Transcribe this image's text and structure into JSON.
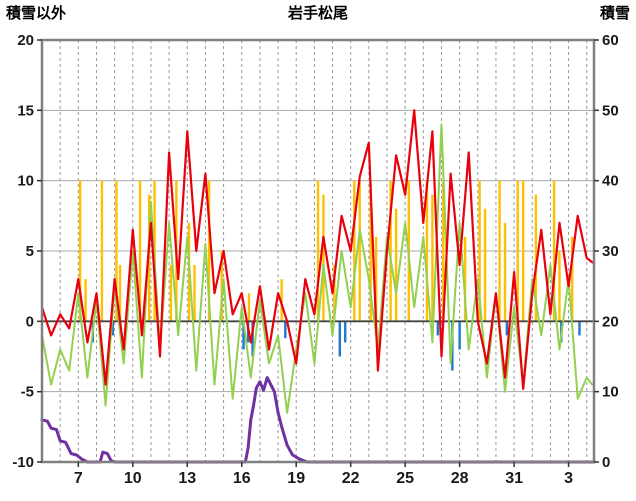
{
  "chart_data": {
    "type": "line",
    "title": "岩手松尾",
    "left_axis": {
      "label": "積雪以外",
      "min": -10,
      "max": 20,
      "tick_step": 5,
      "tick_values": [
        20,
        15,
        10,
        5,
        0,
        -5,
        -10
      ],
      "tick_labels": [
        "20",
        "15",
        "10",
        "5",
        "0",
        "-5",
        "-10"
      ]
    },
    "right_axis": {
      "label": "積雪",
      "min": 0,
      "max": 60,
      "tick_step": 10,
      "tick_values": [
        60,
        50,
        40,
        30,
        20,
        10,
        0
      ],
      "tick_labels": [
        "60",
        "50",
        "40",
        "30",
        "20",
        "10",
        "0"
      ]
    },
    "x_axis": {
      "min": 5,
      "max": 35.4,
      "day_grid_step": 1,
      "tick_positions": [
        7,
        10,
        13,
        16,
        19,
        22,
        25,
        28,
        31,
        34
      ],
      "tick_labels": [
        "7",
        "10",
        "13",
        "16",
        "19",
        "22",
        "25",
        "28",
        "31",
        "3"
      ]
    },
    "grid": {
      "h_line_color": "#aaaaaa",
      "v_line_color": "#999999",
      "zero_line_color": "#444444",
      "frame_color": "#808080"
    },
    "series": [
      {
        "name": "sunshine-bars",
        "type": "bar",
        "axis": "left",
        "color": "#ffc000",
        "bar_width": 2.4,
        "points": [
          [
            7.1,
            10
          ],
          [
            7.4,
            3
          ],
          [
            8.3,
            10
          ],
          [
            9.1,
            10
          ],
          [
            9.3,
            4
          ],
          [
            10.4,
            10
          ],
          [
            10.9,
            9
          ],
          [
            11.2,
            10
          ],
          [
            12.1,
            4
          ],
          [
            12.4,
            10
          ],
          [
            13.1,
            7
          ],
          [
            13.4,
            4
          ],
          [
            14.2,
            10
          ],
          [
            14.9,
            5
          ],
          [
            16.4,
            2
          ],
          [
            18.2,
            3
          ],
          [
            20.2,
            10
          ],
          [
            20.5,
            9
          ],
          [
            21.1,
            4
          ],
          [
            22.2,
            10
          ],
          [
            22.5,
            10
          ],
          [
            23.1,
            10
          ],
          [
            23.4,
            6
          ],
          [
            24.2,
            10
          ],
          [
            24.5,
            8
          ],
          [
            25.2,
            10
          ],
          [
            26.2,
            10
          ],
          [
            26.5,
            9
          ],
          [
            27.1,
            10
          ],
          [
            28.3,
            6
          ],
          [
            29.1,
            10
          ],
          [
            29.4,
            8
          ],
          [
            30.2,
            10
          ],
          [
            30.5,
            7
          ],
          [
            31.2,
            10
          ],
          [
            31.5,
            10
          ],
          [
            32.2,
            9
          ],
          [
            33.2,
            10
          ],
          [
            33.5,
            5
          ],
          [
            34.2,
            6
          ]
        ]
      },
      {
        "name": "precipitation-bars",
        "type": "bar",
        "axis": "left",
        "color": "#1f77d0",
        "bar_width": 2.4,
        "points": [
          [
            7.8,
            -1.5
          ],
          [
            8.9,
            -1
          ],
          [
            16.1,
            -2
          ],
          [
            16.35,
            -1.5
          ],
          [
            16.6,
            -2.5
          ],
          [
            17.3,
            -1
          ],
          [
            18.4,
            -1.2
          ],
          [
            21.4,
            -2.5
          ],
          [
            21.7,
            -1.5
          ],
          [
            26.8,
            -1
          ],
          [
            27.6,
            -3.5
          ],
          [
            28.0,
            -2
          ],
          [
            30.6,
            -1
          ],
          [
            33.6,
            -1.5
          ],
          [
            34.6,
            -1
          ]
        ]
      },
      {
        "name": "green-line",
        "type": "line",
        "axis": "left",
        "color": "#92d050",
        "width": 2,
        "points": [
          [
            5.0,
            -1
          ],
          [
            5.5,
            -4.5
          ],
          [
            6.0,
            -2
          ],
          [
            6.5,
            -3.5
          ],
          [
            7.0,
            2
          ],
          [
            7.5,
            -4
          ],
          [
            8.0,
            1.5
          ],
          [
            8.5,
            -6
          ],
          [
            9.0,
            2.5
          ],
          [
            9.5,
            -3
          ],
          [
            10.0,
            5
          ],
          [
            10.5,
            -4
          ],
          [
            11.0,
            8.5
          ],
          [
            11.5,
            -2
          ],
          [
            12.0,
            7
          ],
          [
            12.5,
            -1
          ],
          [
            13.0,
            6
          ],
          [
            13.5,
            -3.5
          ],
          [
            14.0,
            5.5
          ],
          [
            14.5,
            -4.5
          ],
          [
            15.0,
            3
          ],
          [
            15.5,
            -5.5
          ],
          [
            16.0,
            1
          ],
          [
            16.5,
            -4
          ],
          [
            17.0,
            1.5
          ],
          [
            17.5,
            -3
          ],
          [
            18.0,
            -1
          ],
          [
            18.5,
            -6.5
          ],
          [
            19.0,
            -2
          ],
          [
            19.5,
            2
          ],
          [
            20.0,
            -3
          ],
          [
            20.5,
            4
          ],
          [
            21.0,
            -1
          ],
          [
            21.5,
            5
          ],
          [
            22.0,
            1
          ],
          [
            22.5,
            6.5
          ],
          [
            23.0,
            3
          ],
          [
            23.5,
            -2
          ],
          [
            24.0,
            6
          ],
          [
            24.5,
            2
          ],
          [
            25.0,
            7
          ],
          [
            25.5,
            1
          ],
          [
            26.0,
            6
          ],
          [
            26.5,
            -1.5
          ],
          [
            27.0,
            14
          ],
          [
            27.5,
            -3
          ],
          [
            28.0,
            7
          ],
          [
            28.5,
            -2
          ],
          [
            29.0,
            3
          ],
          [
            29.5,
            -4
          ],
          [
            30.0,
            2
          ],
          [
            30.5,
            -5
          ],
          [
            31.0,
            1
          ],
          [
            31.5,
            -4.5
          ],
          [
            32.0,
            3
          ],
          [
            32.5,
            -1
          ],
          [
            33.0,
            4
          ],
          [
            33.5,
            -2
          ],
          [
            34.0,
            3
          ],
          [
            34.5,
            -5.5
          ],
          [
            35.0,
            -4
          ],
          [
            35.3,
            -4.5
          ]
        ]
      },
      {
        "name": "temperature-line",
        "type": "line",
        "axis": "left",
        "color": "#e8000d",
        "width": 2.2,
        "points": [
          [
            5.0,
            1
          ],
          [
            5.5,
            -1
          ],
          [
            6.0,
            0.5
          ],
          [
            6.5,
            -0.5
          ],
          [
            7.0,
            3
          ],
          [
            7.5,
            -1.5
          ],
          [
            8.0,
            2
          ],
          [
            8.5,
            -4.5
          ],
          [
            9.0,
            3
          ],
          [
            9.5,
            -2
          ],
          [
            10.0,
            6.5
          ],
          [
            10.5,
            -1
          ],
          [
            11.0,
            7
          ],
          [
            11.5,
            -2.5
          ],
          [
            12.0,
            12
          ],
          [
            12.5,
            3
          ],
          [
            13.0,
            13.5
          ],
          [
            13.5,
            5
          ],
          [
            14.0,
            10.5
          ],
          [
            14.5,
            2
          ],
          [
            15.0,
            5
          ],
          [
            15.5,
            0.5
          ],
          [
            16.0,
            2
          ],
          [
            16.5,
            -1.5
          ],
          [
            17.0,
            2.5
          ],
          [
            17.5,
            -2
          ],
          [
            18.0,
            2
          ],
          [
            18.5,
            0
          ],
          [
            19.0,
            -3
          ],
          [
            19.5,
            3
          ],
          [
            20.0,
            0.5
          ],
          [
            20.5,
            6
          ],
          [
            21.0,
            2
          ],
          [
            21.5,
            7.5
          ],
          [
            22.0,
            5
          ],
          [
            22.5,
            10.3
          ],
          [
            23.0,
            12.7
          ],
          [
            23.5,
            -3.5
          ],
          [
            24.0,
            5
          ],
          [
            24.5,
            11.8
          ],
          [
            25.0,
            9
          ],
          [
            25.5,
            15
          ],
          [
            26.0,
            7
          ],
          [
            26.5,
            13.5
          ],
          [
            27.0,
            -2.5
          ],
          [
            27.5,
            10.5
          ],
          [
            28.0,
            4
          ],
          [
            28.5,
            12
          ],
          [
            29.0,
            0
          ],
          [
            29.5,
            -3
          ],
          [
            30.0,
            2
          ],
          [
            30.5,
            -4
          ],
          [
            31.0,
            3.5
          ],
          [
            31.5,
            -4.8
          ],
          [
            32.0,
            2
          ],
          [
            32.5,
            6.5
          ],
          [
            33.0,
            0.5
          ],
          [
            33.5,
            7
          ],
          [
            34.0,
            2.5
          ],
          [
            34.5,
            7.5
          ],
          [
            35.0,
            4.5
          ],
          [
            35.3,
            4.2
          ]
        ]
      },
      {
        "name": "snow-depth-line",
        "type": "line",
        "axis": "right",
        "color": "#7030a0",
        "width": 3,
        "points": [
          [
            5.0,
            6.0
          ],
          [
            5.3,
            5.8
          ],
          [
            5.5,
            4.8
          ],
          [
            5.8,
            4.6
          ],
          [
            6.0,
            3.0
          ],
          [
            6.3,
            2.8
          ],
          [
            6.6,
            1.2
          ],
          [
            6.9,
            1.0
          ],
          [
            7.2,
            0.4
          ],
          [
            7.5,
            0.0
          ],
          [
            8.2,
            0.0
          ],
          [
            8.35,
            1.4
          ],
          [
            8.6,
            1.2
          ],
          [
            8.8,
            0.2
          ],
          [
            9.0,
            0.0
          ],
          [
            16.2,
            0.0
          ],
          [
            16.35,
            2.0
          ],
          [
            16.5,
            6.0
          ],
          [
            16.65,
            8.0
          ],
          [
            16.8,
            10.5
          ],
          [
            17.0,
            11.4
          ],
          [
            17.2,
            10.2
          ],
          [
            17.4,
            12.0
          ],
          [
            17.6,
            11.0
          ],
          [
            17.8,
            10.0
          ],
          [
            18.0,
            7.0
          ],
          [
            18.2,
            5.0
          ],
          [
            18.5,
            2.4
          ],
          [
            18.8,
            1.0
          ],
          [
            19.2,
            0.4
          ],
          [
            19.6,
            0.0
          ],
          [
            35.4,
            0.0
          ]
        ]
      }
    ]
  }
}
